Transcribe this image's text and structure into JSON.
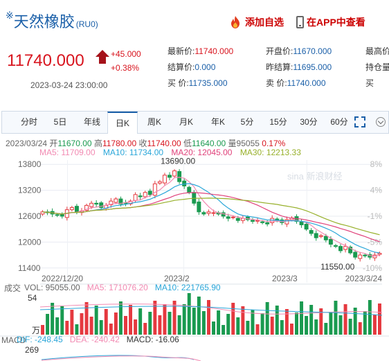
{
  "header": {
    "mark": "※",
    "title": "天然橡胶",
    "code": "(RU0)",
    "favorite_label": "添加自选",
    "app_label": "在APP中查看"
  },
  "quote": {
    "price": "11740.000",
    "change": "+45.000",
    "change_pct": "+0.38%",
    "datetime": "2023-03-24 23:00:00",
    "fields": [
      {
        "label": "最新价:",
        "value": "11740.000",
        "red": true
      },
      {
        "label": "开盘价:",
        "value": "11670.000",
        "red": false
      },
      {
        "label": "最高价",
        "value": "",
        "red": false
      },
      {
        "label": "结算价:",
        "value": "0.000",
        "red": false
      },
      {
        "label": "昨结算:",
        "value": "11695.000",
        "red": false
      },
      {
        "label": "持仓量",
        "value": "",
        "red": false
      },
      {
        "label": "买  价:",
        "value": "11735.000",
        "red": false
      },
      {
        "label": "卖  价:",
        "value": "11740.000",
        "red": false
      },
      {
        "label": "买",
        "value": "",
        "red": false
      }
    ]
  },
  "tabs": [
    "分时",
    "5日",
    "年线",
    "日K",
    "周K",
    "月K",
    "年K",
    "5分",
    "15分",
    "30分",
    "60分"
  ],
  "active_tab": "日K",
  "ohlc": {
    "date": "2023/03/24",
    "open_label": "开",
    "open": "11670.00",
    "high_label": "高",
    "high": "11780.00",
    "close_label": "收",
    "close": "11740.00",
    "low_label": "低",
    "low": "11640.00",
    "volume_label": "量",
    "volume": "95055",
    "change": "0.17%"
  },
  "ma": [
    {
      "label": "MA5: 11709.00",
      "color": "#f28ab2"
    },
    {
      "label": "MA10: 11734.00",
      "color": "#2aa6d9"
    },
    {
      "label": "MA20: 12045.00",
      "color": "#e0417a"
    },
    {
      "label": "MA30: 12213.33",
      "color": "#97b02a"
    }
  ],
  "volume_info": {
    "prefix": "成交",
    "vol": "VOL: 95055.00",
    "ma5": "MA5: 171076.20",
    "ma10": "MA10: 221765.90"
  },
  "macd_info": {
    "prefix": "MACD",
    "dif": "DIF: -248.45",
    "dea": "DEA: -240.42",
    "macd": "MACD: -16.06"
  },
  "watermark": "sina 新浪财经",
  "chart_data": {
    "type": "candlestick",
    "y_ticks": [
      "13800",
      "13200",
      "12600",
      "12000",
      "11400"
    ],
    "pct_ticks": [
      "8%",
      "4%",
      "-1%",
      "-5%",
      "-10%"
    ],
    "x_labels": [
      "2022/12/20",
      "2023/2",
      "2023/3",
      "2023/3/24"
    ],
    "max_label": "13690.00",
    "min_label": "11550.00",
    "volume_axis": {
      "top": "54",
      "unit": "万"
    },
    "macd_axis": {
      "top": "269"
    },
    "ylim": [
      11300,
      13900
    ],
    "closes": [
      12700,
      12680,
      12650,
      12620,
      12600,
      12750,
      12800,
      12700,
      12720,
      12850,
      12900,
      12880,
      12800,
      12850,
      12950,
      13000,
      12880,
      12900,
      12950,
      13100,
      13050,
      13150,
      13100,
      13350,
      13400,
      13550,
      13500,
      13650,
      13400,
      13300,
      13150,
      12900,
      12700,
      12650,
      12700,
      12680,
      12650,
      12600,
      12550,
      12580,
      12500,
      12550,
      12520,
      12480,
      12500,
      12450,
      12420,
      12550,
      12500,
      12450,
      12520,
      12560,
      12480,
      12400,
      12300,
      12200,
      12100,
      12150,
      12050,
      11950,
      11900,
      11800,
      11900,
      11750,
      11650,
      11700,
      11680,
      11650,
      11700,
      11740
    ]
  }
}
